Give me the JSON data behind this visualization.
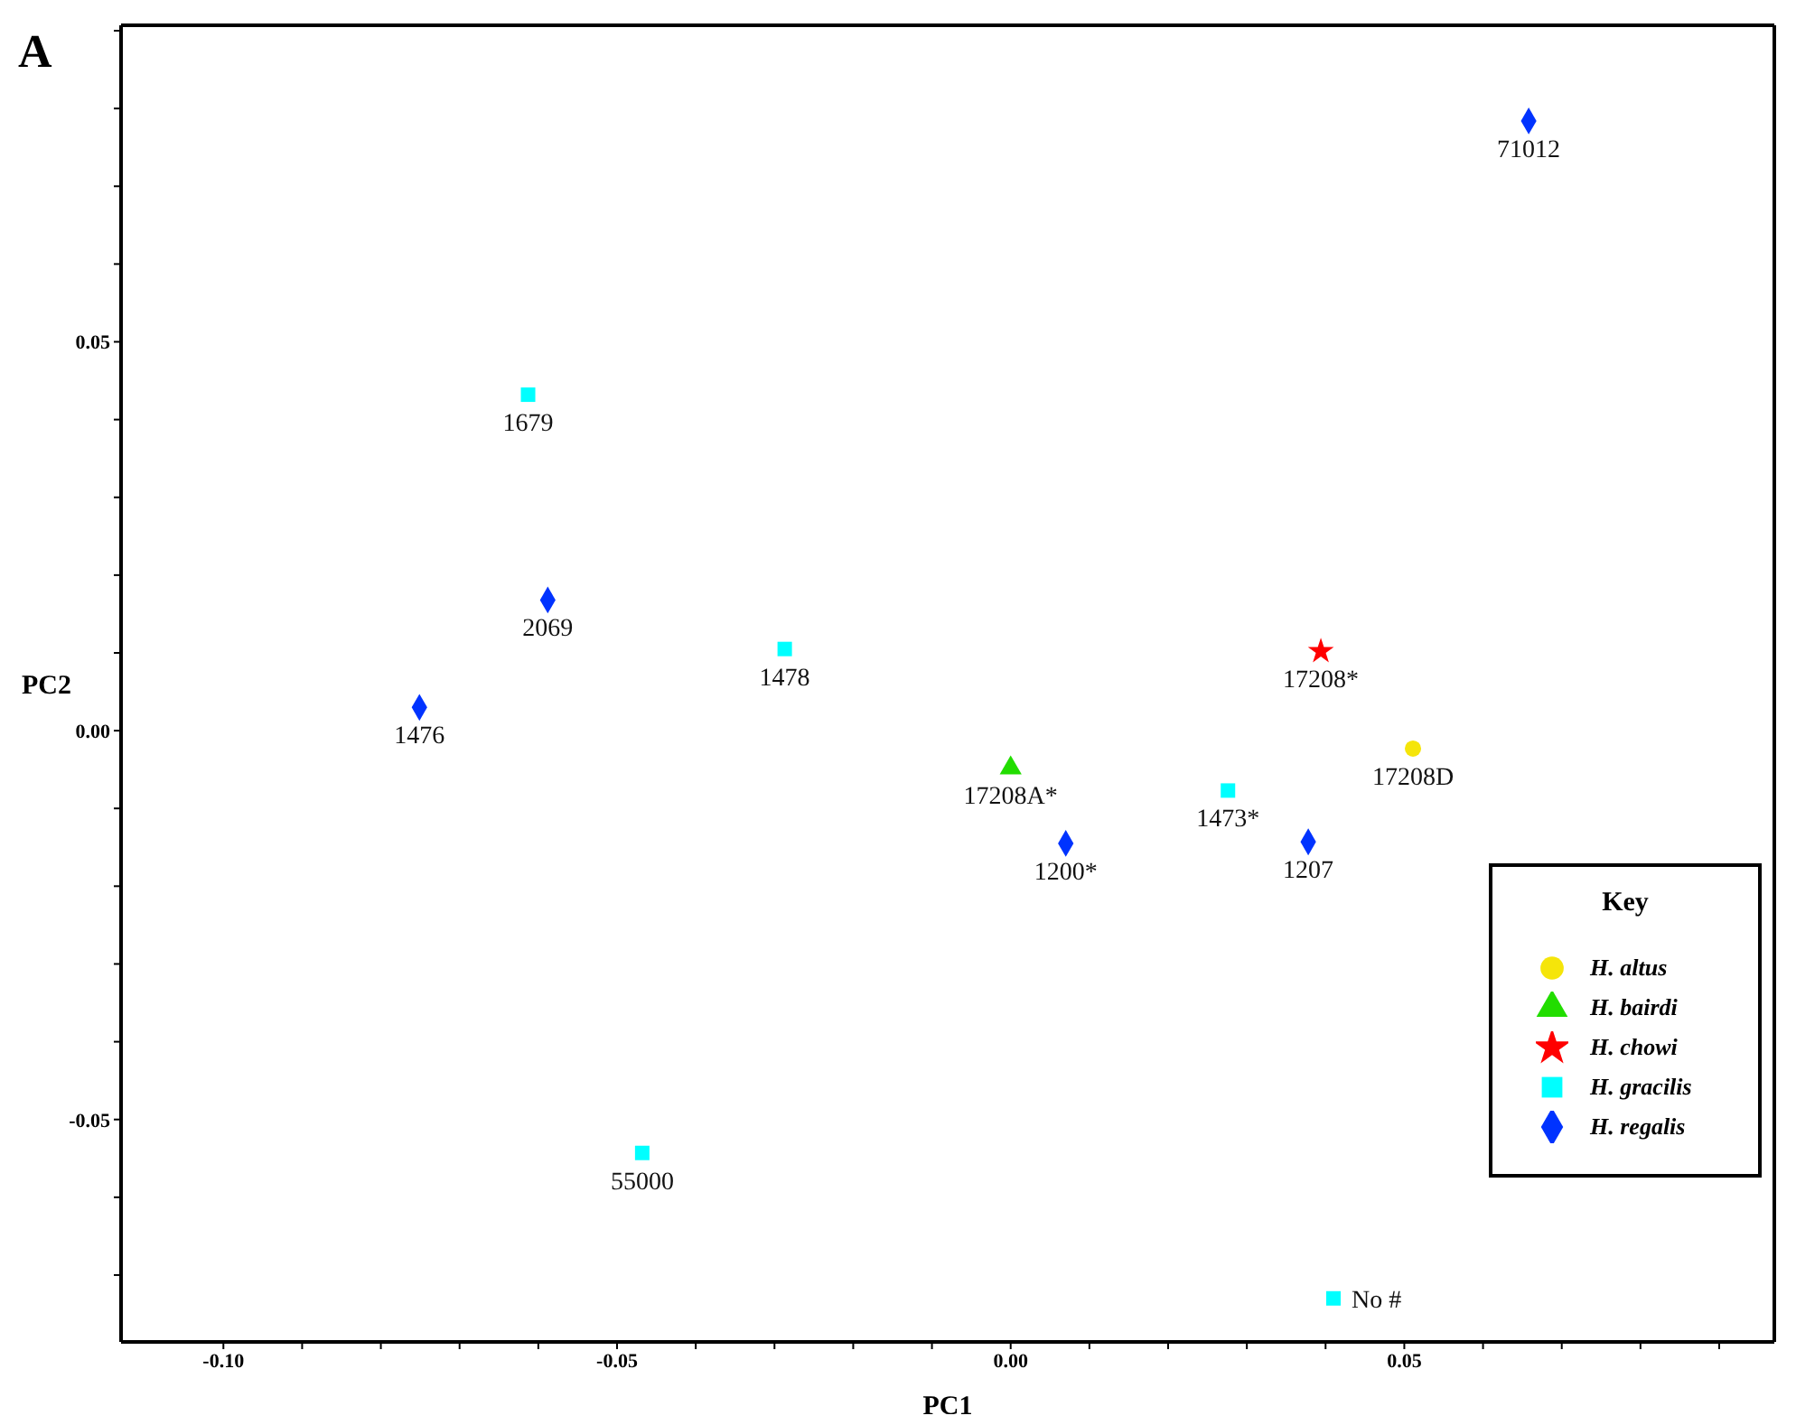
{
  "chart_data": {
    "type": "scatter",
    "title": "A",
    "xlabel": "PC1",
    "ylabel": "PC2",
    "legend_title": "Key",
    "legend": "bottom right",
    "xlim": [
      -0.113,
      0.097
    ],
    "ylim": [
      -0.0786,
      0.0907
    ],
    "xticks": [
      {
        "value": -0.1,
        "label": "-0.10"
      },
      {
        "value": -0.09,
        "label": null
      },
      {
        "value": -0.08,
        "label": null
      },
      {
        "value": -0.07,
        "label": null
      },
      {
        "value": -0.06,
        "label": null
      },
      {
        "value": -0.05,
        "label": "-0.05"
      },
      {
        "value": -0.04,
        "label": null
      },
      {
        "value": -0.03,
        "label": null
      },
      {
        "value": -0.02,
        "label": null
      },
      {
        "value": -0.01,
        "label": null
      },
      {
        "value": 0,
        "label": "0.00"
      },
      {
        "value": 0.01,
        "label": null
      },
      {
        "value": 0.02,
        "label": null
      },
      {
        "value": 0.03,
        "label": null
      },
      {
        "value": 0.04,
        "label": null
      },
      {
        "value": 0.05,
        "label": "0.05"
      },
      {
        "value": 0.06,
        "label": null
      },
      {
        "value": 0.07,
        "label": null
      },
      {
        "value": 0.08,
        "label": null
      },
      {
        "value": 0.09,
        "label": null
      }
    ],
    "yticks": [
      {
        "value": -0.07,
        "label": null
      },
      {
        "value": -0.06,
        "label": null
      },
      {
        "value": -0.05,
        "label": "-0.05"
      },
      {
        "value": -0.04,
        "label": null
      },
      {
        "value": -0.03,
        "label": null
      },
      {
        "value": -0.02,
        "label": null
      },
      {
        "value": -0.01,
        "label": null
      },
      {
        "value": 0,
        "label": "0.00"
      },
      {
        "value": 0.01,
        "label": null
      },
      {
        "value": 0.02,
        "label": null
      },
      {
        "value": 0.03,
        "label": null
      },
      {
        "value": 0.04,
        "label": null
      },
      {
        "value": 0.05,
        "label": "0.05"
      },
      {
        "value": 0.06,
        "label": null
      },
      {
        "value": 0.07,
        "label": null
      },
      {
        "value": 0.08,
        "label": null
      },
      {
        "value": 0.09,
        "label": null
      }
    ],
    "series": [
      {
        "name": "H. altus",
        "color": "#f5e50a",
        "marker": "circle",
        "x": [
          0.0511
        ],
        "values": [
          -0.0023
        ]
      },
      {
        "name": "H. bairdi",
        "color": "#22dd00",
        "marker": "triangle",
        "x": [
          0.0
        ],
        "values": [
          -0.0048
        ]
      },
      {
        "name": "H. chowi",
        "color": "#ff0000",
        "marker": "star",
        "x": [
          0.0394
        ],
        "values": [
          0.0102
        ]
      },
      {
        "name": "H. gracilis",
        "color": "#00ffff",
        "marker": "square",
        "x": [
          -0.0613,
          -0.0287,
          -0.0468,
          0.0276,
          0.041
        ],
        "values": [
          0.0432,
          0.0105,
          -0.0543,
          -0.0077,
          -0.073
        ]
      },
      {
        "name": "H. regalis",
        "color": "#0033ff",
        "marker": "diamond",
        "x": [
          -0.0588,
          -0.0751,
          0.007,
          0.0378,
          0.0658
        ],
        "values": [
          0.0168,
          0.003,
          -0.0145,
          -0.0143,
          0.0784
        ]
      }
    ],
    "annotations": [
      {
        "text": "17208D",
        "x": 0.0511,
        "y": -0.0023
      },
      {
        "text": "17208A*",
        "x": 0.0,
        "y": -0.0048
      },
      {
        "text": "17208*",
        "x": 0.0394,
        "y": 0.0102
      },
      {
        "text": "1679",
        "x": -0.0613,
        "y": 0.0432
      },
      {
        "text": "1478",
        "x": -0.0287,
        "y": 0.0105
      },
      {
        "text": "55000",
        "x": -0.0468,
        "y": -0.0543
      },
      {
        "text": "1473*",
        "x": 0.0276,
        "y": -0.0077
      },
      {
        "text": "No #",
        "x": 0.041,
        "y": -0.073
      },
      {
        "text": "2069",
        "x": -0.0588,
        "y": 0.0168
      },
      {
        "text": "1476",
        "x": -0.0751,
        "y": 0.003
      },
      {
        "text": "1200*",
        "x": 0.007,
        "y": -0.0145
      },
      {
        "text": "1207",
        "x": 0.0378,
        "y": -0.0143
      },
      {
        "text": "71012",
        "x": 0.0658,
        "y": 0.0784
      }
    ]
  }
}
